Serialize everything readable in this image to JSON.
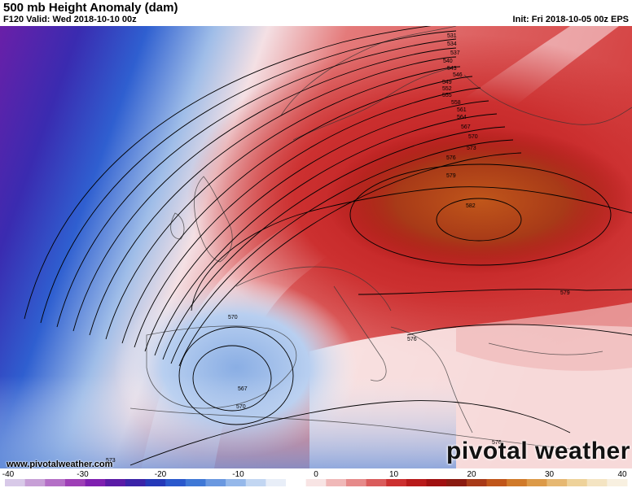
{
  "header": {
    "title": "500 mb Height Anomaly (dam)",
    "valid": "F120 Valid: Wed 2018-10-10 00z",
    "init": "Init: Fri 2018-10-05 00z EPS"
  },
  "footer": {
    "credit": "www.pivotalweather.com",
    "brand": "pivotal weather"
  },
  "colors": {
    "strong_negative": "#6a1fa8",
    "negative": "#2f5fd0",
    "neutral": "#ffffff",
    "positive": "#c82020",
    "strong_positive": "#c0561a",
    "contour": "#000000",
    "coastline": "#333333"
  },
  "contour_labels": [
    "531",
    "534",
    "537",
    "540",
    "543",
    "546",
    "549",
    "552",
    "555",
    "558",
    "561",
    "564",
    "567",
    "570",
    "573",
    "576",
    "579",
    "582",
    "570",
    "567",
    "570",
    "576",
    "579",
    "573",
    "576"
  ],
  "colorbar": {
    "ticks": [
      "-40",
      "-30",
      "-20",
      "-10",
      "0",
      "10",
      "20",
      "30",
      "40"
    ],
    "min": -40,
    "max": 40,
    "colors": [
      "#d8c9e8",
      "#c79fd6",
      "#b46fc6",
      "#9e3fb6",
      "#7f1fb0",
      "#5a1aa6",
      "#3a23a8",
      "#2438b8",
      "#2a58cc",
      "#3f78d6",
      "#6a98e0",
      "#95b8ea",
      "#c2d6f2",
      "#e8eef8",
      "#ffffff",
      "#f8e4e4",
      "#f0b8b8",
      "#e68a8a",
      "#da5c5c",
      "#cc3030",
      "#b81a1a",
      "#a01010",
      "#8a1a10",
      "#a83a18",
      "#c0561a",
      "#d07a2a",
      "#dc9a48",
      "#e6b872",
      "#eed29a",
      "#f4e4c2",
      "#f8f0e0"
    ]
  }
}
